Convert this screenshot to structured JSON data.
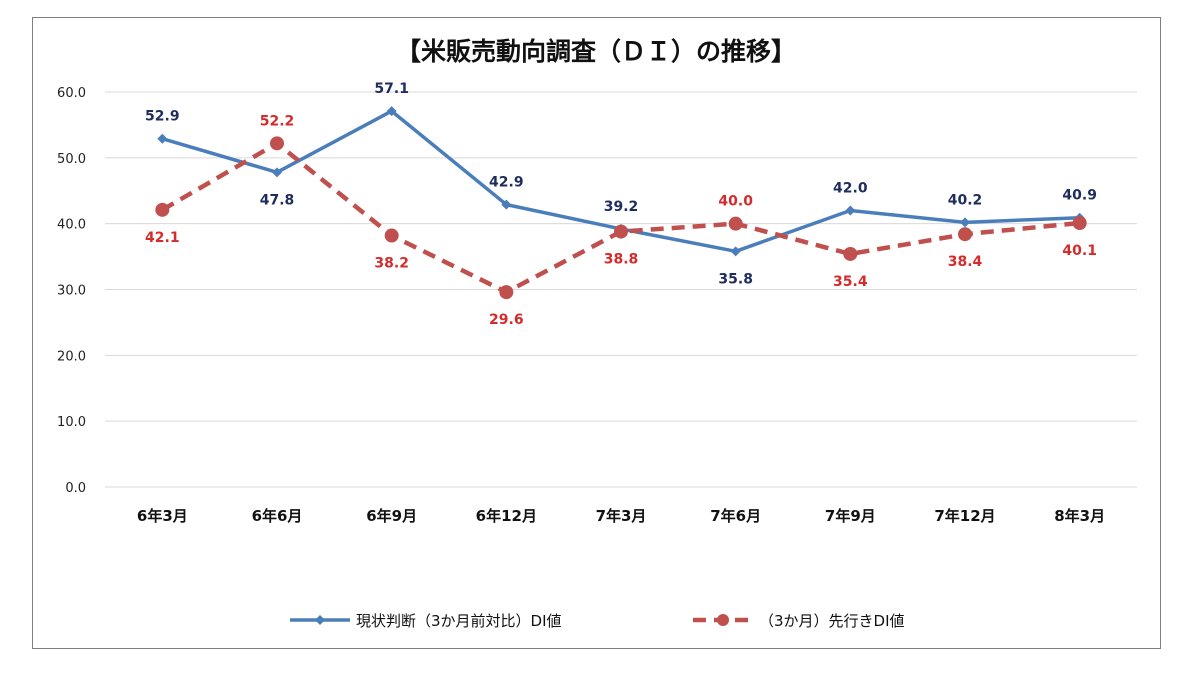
{
  "chart_data": {
    "type": "line",
    "title": "【米販売動向調査（ＤＩ）の推移】",
    "categories": [
      "6年3月",
      "6年6月",
      "6年9月",
      "6年12月",
      "7年3月",
      "7年6月",
      "7年9月",
      "7年12月",
      "8年3月"
    ],
    "ylim": [
      0,
      60
    ],
    "yticks": [
      "0.0",
      "10.0",
      "20.0",
      "30.0",
      "40.0",
      "50.0",
      "60.0"
    ],
    "grid": true,
    "legend_position": "bottom",
    "series": [
      {
        "name": "現状判断（3か月前対比）DI値",
        "values": [
          52.9,
          47.8,
          57.1,
          42.9,
          39.2,
          35.8,
          42.0,
          40.2,
          40.9
        ],
        "labels": [
          "52.9",
          "47.8",
          "57.1",
          "42.9",
          "39.2",
          "35.8",
          "42.0",
          "40.2",
          "40.9"
        ],
        "color": "#4a7ebb",
        "label_color": "#1f2d5c",
        "style": "solid",
        "marker": "diamond"
      },
      {
        "name": "（3か月）先行きDI値",
        "values": [
          42.1,
          52.2,
          38.2,
          29.6,
          38.8,
          40.0,
          35.4,
          38.4,
          40.1
        ],
        "labels": [
          "42.1",
          "52.2",
          "38.2",
          "29.6",
          "38.8",
          "40.0",
          "35.4",
          "38.4",
          "40.1"
        ],
        "color": "#c0504d",
        "label_color": "#d42b2b",
        "style": "dashed",
        "marker": "circle"
      }
    ]
  }
}
